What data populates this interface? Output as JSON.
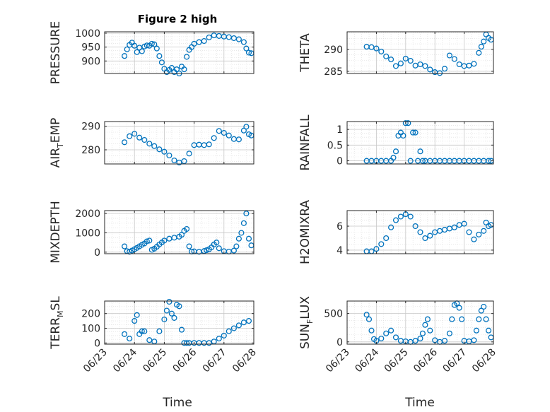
{
  "figure": {
    "title": "Figure 2 high",
    "marker_color": "#0072BD",
    "axis_color": "#262626",
    "grid_color": "#dcdcdc"
  },
  "chart_data": [
    {
      "id": "pressure",
      "type": "scatter",
      "title": "Figure 2 high",
      "ylabel": "PRESSURE",
      "xlabel": "",
      "ylim": [
        855,
        1005
      ],
      "yticks": [
        900,
        950,
        1000
      ],
      "xlim": [
        "06/23",
        "06/28"
      ],
      "x_tick_labels_shown": false,
      "grid": true,
      "minor_grid": true,
      "x": [
        "06/23 16:00",
        "06/23 18:00",
        "06/23 20:00",
        "06/23 22:00",
        "06/24 00:00",
        "06/24 02:00",
        "06/24 04:00",
        "06/24 06:00",
        "06/24 08:00",
        "06/24 10:00",
        "06/24 12:00",
        "06/24 14:00",
        "06/24 16:00",
        "06/24 18:00",
        "06/24 20:00",
        "06/24 22:00",
        "06/25 00:00",
        "06/25 02:00",
        "06/25 04:00",
        "06/25 06:00",
        "06/25 08:00",
        "06/25 10:00",
        "06/25 12:00",
        "06/25 14:00",
        "06/25 16:00",
        "06/25 18:00",
        "06/25 20:00",
        "06/25 22:00",
        "06/26 00:00",
        "06/26 04:00",
        "06/26 08:00",
        "06/26 12:00",
        "06/26 16:00",
        "06/26 20:00",
        "06/27 00:00",
        "06/27 04:00",
        "06/27 08:00",
        "06/27 12:00",
        "06/27 16:00",
        "06/27 18:00",
        "06/27 20:00",
        "06/27 22:00"
      ],
      "y": [
        918,
        942,
        958,
        966,
        955,
        932,
        948,
        935,
        952,
        956,
        955,
        962,
        960,
        945,
        918,
        895,
        872,
        860,
        868,
        875,
        860,
        870,
        855,
        880,
        870,
        915,
        940,
        950,
        962,
        968,
        972,
        985,
        992,
        990,
        988,
        986,
        982,
        978,
        968,
        945,
        930,
        928
      ]
    },
    {
      "id": "theta",
      "type": "scatter",
      "title": "",
      "ylabel": "THETA",
      "xlabel": "",
      "ylim": [
        284.5,
        294
      ],
      "yticks": [
        285,
        290
      ],
      "xlim": [
        "06/23",
        "06/28"
      ],
      "x_tick_labels_shown": false,
      "grid": true,
      "minor_grid": true,
      "x": [
        "06/23 16:00",
        "06/23 20:00",
        "06/24 00:00",
        "06/24 04:00",
        "06/24 08:00",
        "06/24 12:00",
        "06/24 16:00",
        "06/24 20:00",
        "06/25 00:00",
        "06/25 04:00",
        "06/25 08:00",
        "06/25 12:00",
        "06/25 16:00",
        "06/25 20:00",
        "06/26 00:00",
        "06/26 04:00",
        "06/26 08:00",
        "06/26 12:00",
        "06/26 16:00",
        "06/26 20:00",
        "06/27 00:00",
        "06/27 04:00",
        "06/27 08:00",
        "06/27 12:00",
        "06/27 14:00",
        "06/27 16:00",
        "06/27 18:00",
        "06/27 20:00",
        "06/27 22:00"
      ],
      "y": [
        290.6,
        290.5,
        290.2,
        289.5,
        288.4,
        287.7,
        286.2,
        286.8,
        287.9,
        287.4,
        286.3,
        286.6,
        286.2,
        285.4,
        284.8,
        284.6,
        285.6,
        288.6,
        287.8,
        286.6,
        286.2,
        286.3,
        286.7,
        289.2,
        290.6,
        291.8,
        293.4,
        292.6,
        292.2
      ]
    },
    {
      "id": "air_temp",
      "type": "scatter",
      "title": "",
      "ylabel": "AIR_TEMP",
      "xlabel": "",
      "ylim": [
        274,
        292
      ],
      "yticks": [
        280,
        290
      ],
      "xlim": [
        "06/23",
        "06/28"
      ],
      "x_tick_labels_shown": false,
      "grid": true,
      "minor_grid": true,
      "x": [
        "06/23 16:00",
        "06/23 20:00",
        "06/24 00:00",
        "06/24 04:00",
        "06/24 08:00",
        "06/24 12:00",
        "06/24 16:00",
        "06/24 20:00",
        "06/25 00:00",
        "06/25 04:00",
        "06/25 08:00",
        "06/25 12:00",
        "06/25 16:00",
        "06/25 20:00",
        "06/26 00:00",
        "06/26 04:00",
        "06/26 08:00",
        "06/26 12:00",
        "06/26 16:00",
        "06/26 20:00",
        "06/27 00:00",
        "06/27 04:00",
        "06/27 08:00",
        "06/27 12:00",
        "06/27 16:00",
        "06/27 18:00",
        "06/27 20:00",
        "06/27 22:00"
      ],
      "y": [
        283.2,
        285.8,
        286.8,
        285.2,
        284.2,
        282.6,
        281.6,
        280.2,
        279.2,
        277.6,
        275.5,
        274.6,
        275.2,
        278.4,
        282.0,
        282.2,
        282.0,
        282.3,
        285.0,
        288.0,
        287.2,
        286.1,
        284.6,
        284.4,
        288.2,
        289.8,
        286.6,
        286.1
      ]
    },
    {
      "id": "rainfall",
      "type": "scatter",
      "title": "",
      "ylabel": "RAINFALL",
      "xlabel": "",
      "ylim": [
        -0.1,
        1.25
      ],
      "yticks": [
        0,
        0.5,
        1
      ],
      "xlim": [
        "06/23",
        "06/28"
      ],
      "x_tick_labels_shown": false,
      "grid": true,
      "minor_grid": true,
      "x": [
        "06/23 16:00",
        "06/23 20:00",
        "06/24 00:00",
        "06/24 04:00",
        "06/24 08:00",
        "06/24 12:00",
        "06/24 14:00",
        "06/24 16:00",
        "06/24 18:00",
        "06/24 20:00",
        "06/24 22:00",
        "06/25 00:00",
        "06/25 02:00",
        "06/25 04:00",
        "06/25 06:00",
        "06/25 08:00",
        "06/25 10:00",
        "06/25 12:00",
        "06/25 14:00",
        "06/25 16:00",
        "06/25 20:00",
        "06/26 00:00",
        "06/26 04:00",
        "06/26 08:00",
        "06/26 12:00",
        "06/26 16:00",
        "06/26 20:00",
        "06/27 00:00",
        "06/27 04:00",
        "06/27 08:00",
        "06/27 12:00",
        "06/27 16:00",
        "06/27 20:00",
        "06/27 22:00"
      ],
      "y": [
        0,
        0,
        0,
        0,
        0,
        0,
        0.1,
        0.3,
        0.8,
        0.9,
        0.8,
        1.2,
        1.2,
        0,
        0.9,
        0.9,
        0,
        0.3,
        0,
        0,
        0,
        0,
        0,
        0,
        0,
        0,
        0,
        0,
        0,
        0,
        0,
        0,
        0,
        0
      ]
    },
    {
      "id": "mixdepth",
      "type": "scatter",
      "title": "",
      "ylabel": "MIXDEPTH",
      "xlabel": "",
      "ylim": [
        -80,
        2150
      ],
      "yticks": [
        0,
        1000,
        2000
      ],
      "xlim": [
        "06/23",
        "06/28"
      ],
      "x_tick_labels_shown": false,
      "grid": true,
      "minor_grid": true,
      "x": [
        "06/23 16:00",
        "06/23 18:00",
        "06/23 20:00",
        "06/23 22:00",
        "06/24 00:00",
        "06/24 02:00",
        "06/24 04:00",
        "06/24 06:00",
        "06/24 08:00",
        "06/24 10:00",
        "06/24 12:00",
        "06/24 14:00",
        "06/24 16:00",
        "06/24 18:00",
        "06/24 20:00",
        "06/24 22:00",
        "06/25 00:00",
        "06/25 04:00",
        "06/25 08:00",
        "06/25 12:00",
        "06/25 14:00",
        "06/25 16:00",
        "06/25 18:00",
        "06/25 20:00",
        "06/25 22:00",
        "06/26 00:00",
        "06/26 04:00",
        "06/26 08:00",
        "06/26 10:00",
        "06/26 12:00",
        "06/26 14:00",
        "06/26 16:00",
        "06/26 18:00",
        "06/26 20:00",
        "06/27 00:00",
        "06/27 04:00",
        "06/27 08:00",
        "06/27 10:00",
        "06/27 12:00",
        "06/27 14:00",
        "06/27 16:00",
        "06/27 18:00",
        "06/27 20:00",
        "06/27 22:00"
      ],
      "y": [
        300,
        50,
        20,
        80,
        150,
        220,
        300,
        380,
        450,
        560,
        600,
        120,
        180,
        280,
        400,
        500,
        600,
        700,
        750,
        800,
        900,
        1100,
        1200,
        300,
        30,
        40,
        20,
        60,
        100,
        150,
        250,
        400,
        500,
        200,
        50,
        30,
        80,
        300,
        700,
        1000,
        1500,
        2000,
        700,
        350
      ]
    },
    {
      "id": "h2omixra",
      "type": "scatter",
      "title": "",
      "ylabel": "H2OMIXRA",
      "xlabel": "",
      "ylim": [
        3.7,
        7.3
      ],
      "yticks": [
        4,
        6
      ],
      "xlim": [
        "06/23",
        "06/28"
      ],
      "x_tick_labels_shown": false,
      "grid": true,
      "minor_grid": true,
      "x": [
        "06/23 16:00",
        "06/23 20:00",
        "06/24 00:00",
        "06/24 04:00",
        "06/24 08:00",
        "06/24 12:00",
        "06/24 16:00",
        "06/24 20:00",
        "06/25 00:00",
        "06/25 04:00",
        "06/25 08:00",
        "06/25 12:00",
        "06/25 16:00",
        "06/25 20:00",
        "06/26 00:00",
        "06/26 04:00",
        "06/26 08:00",
        "06/26 12:00",
        "06/26 16:00",
        "06/26 20:00",
        "06/27 00:00",
        "06/27 04:00",
        "06/27 08:00",
        "06/27 12:00",
        "06/27 16:00",
        "06/27 18:00",
        "06/27 20:00",
        "06/27 22:00"
      ],
      "y": [
        3.9,
        3.9,
        4.1,
        4.5,
        5.0,
        5.9,
        6.5,
        6.8,
        7.0,
        6.8,
        6.0,
        5.5,
        5.0,
        5.2,
        5.5,
        5.6,
        5.7,
        5.8,
        5.9,
        6.1,
        6.2,
        5.5,
        4.9,
        5.3,
        5.6,
        6.3,
        6.0,
        6.1
      ]
    },
    {
      "id": "terr_msl",
      "type": "scatter",
      "title": "",
      "ylabel": "TERR_MSL",
      "xlabel": "",
      "ylim": [
        -8,
        285
      ],
      "yticks": [
        0,
        100,
        200
      ],
      "xlim": [
        "06/23",
        "06/28"
      ],
      "x_tick_labels_shown": false,
      "grid": true,
      "minor_grid": true,
      "x": [
        "06/23 16:00",
        "06/23 20:00",
        "06/24 00:00",
        "06/24 02:00",
        "06/24 04:00",
        "06/24 06:00",
        "06/24 08:00",
        "06/24 12:00",
        "06/24 16:00",
        "06/24 20:00",
        "06/25 00:00",
        "06/25 02:00",
        "06/25 04:00",
        "06/25 06:00",
        "06/25 08:00",
        "06/25 10:00",
        "06/25 12:00",
        "06/25 14:00",
        "06/25 16:00",
        "06/25 18:00",
        "06/25 20:00",
        "06/26 00:00",
        "06/26 04:00",
        "06/26 08:00",
        "06/26 12:00",
        "06/26 16:00",
        "06/26 20:00",
        "06/27 00:00",
        "06/27 04:00",
        "06/27 08:00",
        "06/27 12:00",
        "06/27 16:00",
        "06/27 20:00"
      ],
      "y": [
        60,
        30,
        150,
        190,
        60,
        80,
        80,
        20,
        10,
        80,
        160,
        220,
        280,
        200,
        170,
        260,
        250,
        90,
        0,
        0,
        0,
        0,
        0,
        0,
        0,
        10,
        30,
        50,
        80,
        100,
        120,
        140,
        150
      ]
    },
    {
      "id": "sun_flux",
      "type": "scatter",
      "title": "",
      "ylabel": "SUN_FLUX",
      "xlabel": "",
      "ylim": [
        -40,
        720
      ],
      "yticks": [
        0,
        500
      ],
      "xlim": [
        "06/23",
        "06/28"
      ],
      "x_tick_labels_shown": false,
      "grid": true,
      "minor_grid": true,
      "x": [
        "06/23 16:00",
        "06/23 18:00",
        "06/23 20:00",
        "06/23 22:00",
        "06/24 00:00",
        "06/24 04:00",
        "06/24 08:00",
        "06/24 12:00",
        "06/24 16:00",
        "06/24 20:00",
        "06/25 00:00",
        "06/25 04:00",
        "06/25 08:00",
        "06/25 12:00",
        "06/25 14:00",
        "06/25 16:00",
        "06/25 18:00",
        "06/25 20:00",
        "06/26 00:00",
        "06/26 04:00",
        "06/26 08:00",
        "06/26 12:00",
        "06/26 14:00",
        "06/26 16:00",
        "06/26 18:00",
        "06/26 20:00",
        "06/26 22:00",
        "06/27 00:00",
        "06/27 04:00",
        "06/27 08:00",
        "06/27 10:00",
        "06/27 12:00",
        "06/27 14:00",
        "06/27 16:00",
        "06/27 18:00",
        "06/27 20:00",
        "06/27 22:00"
      ],
      "y": [
        480,
        400,
        200,
        50,
        20,
        60,
        150,
        200,
        80,
        20,
        10,
        0,
        20,
        60,
        150,
        300,
        400,
        200,
        30,
        0,
        20,
        150,
        400,
        650,
        680,
        600,
        400,
        20,
        10,
        30,
        200,
        400,
        550,
        620,
        400,
        200,
        80
      ]
    }
  ],
  "x_axes": [
    {
      "id": "left",
      "xlabel": "Time",
      "tick_labels": [
        "06/23",
        "06/24",
        "06/25",
        "06/26",
        "06/27",
        "06/28"
      ]
    },
    {
      "id": "right",
      "xlabel": "Time",
      "tick_labels": [
        "06/23",
        "06/24",
        "06/25",
        "06/26",
        "06/27",
        "06/28"
      ]
    }
  ]
}
